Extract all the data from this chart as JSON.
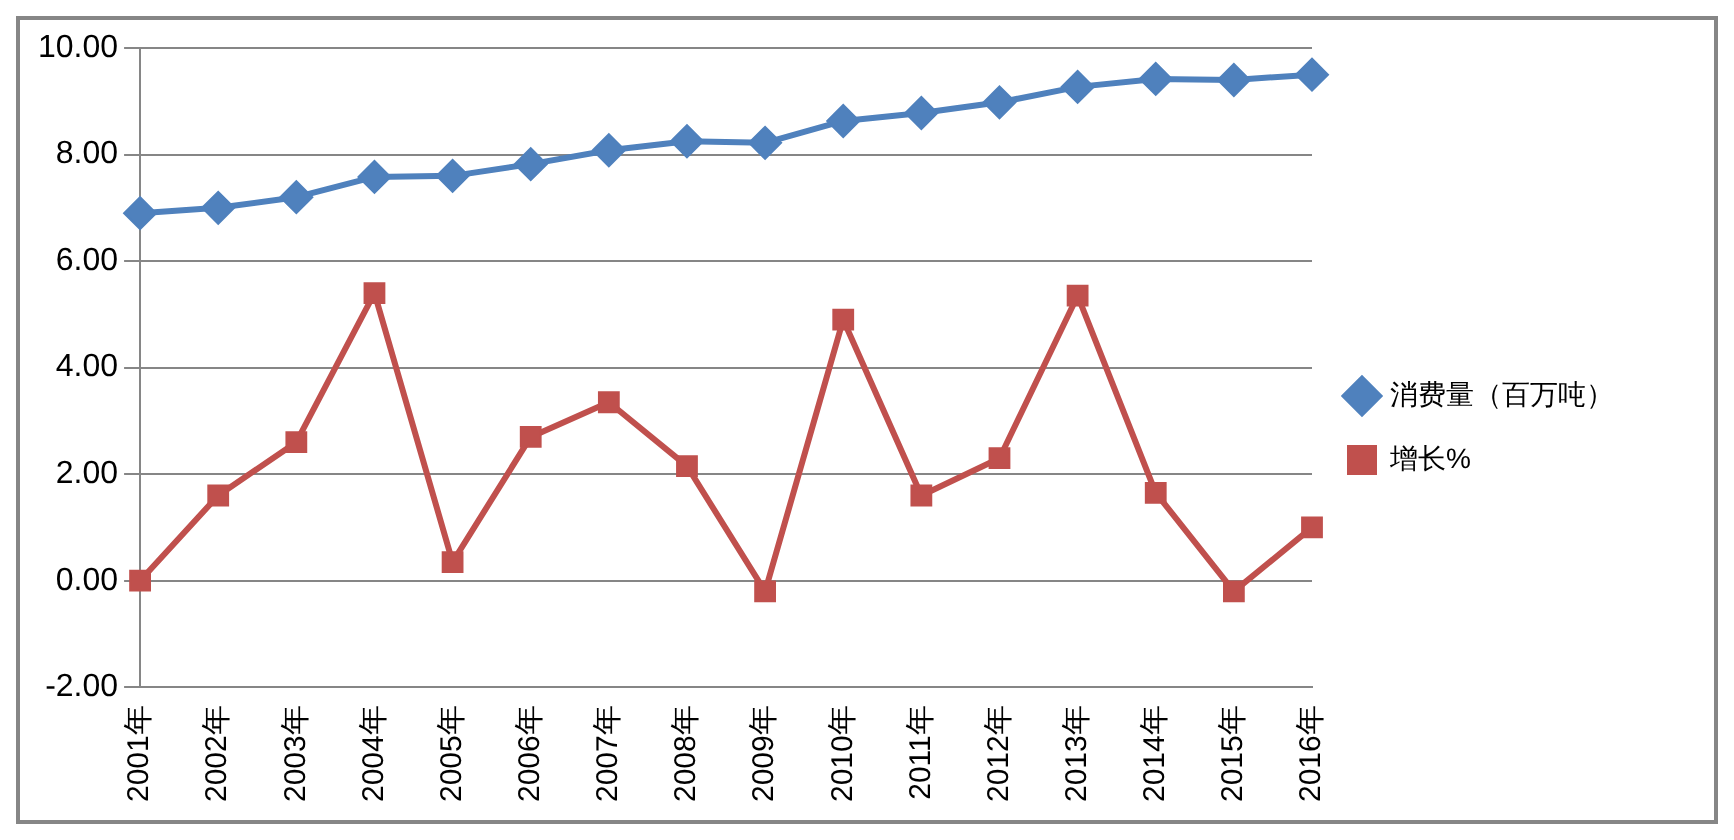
{
  "chart_data": {
    "type": "line",
    "categories": [
      "2001年",
      "2002年",
      "2003年",
      "2004年",
      "2005年",
      "2006年",
      "2007年",
      "2008年",
      "2009年",
      "2010年",
      "2011年",
      "2012年",
      "2013年",
      "2014年",
      "2015年",
      "2016年"
    ],
    "series": [
      {
        "name": "消费量（百万吨）",
        "color": "#4f81bd",
        "marker": "diamond",
        "values": [
          6.9,
          7.0,
          7.2,
          7.58,
          7.6,
          7.82,
          8.08,
          8.25,
          8.22,
          8.63,
          8.78,
          8.98,
          9.27,
          9.42,
          9.4,
          9.5
        ]
      },
      {
        "name": "增长%",
        "color": "#c0504d",
        "marker": "square",
        "values": [
          0,
          1.6,
          2.6,
          5.4,
          0.35,
          2.7,
          3.35,
          2.15,
          -0.2,
          4.9,
          1.6,
          2.3,
          5.35,
          1.65,
          -0.2,
          1.0
        ]
      }
    ],
    "ylim": [
      -2,
      10
    ],
    "yticks": [
      {
        "value": -2,
        "label": "-2.00"
      },
      {
        "value": 0,
        "label": "0.00"
      },
      {
        "value": 2,
        "label": "2.00"
      },
      {
        "value": 4,
        "label": "4.00"
      },
      {
        "value": 6,
        "label": "6.00"
      },
      {
        "value": 8,
        "label": "8.00"
      },
      {
        "value": 10,
        "label": "10.00"
      }
    ],
    "grid": "y",
    "legend": "right",
    "line_style": "solid"
  }
}
